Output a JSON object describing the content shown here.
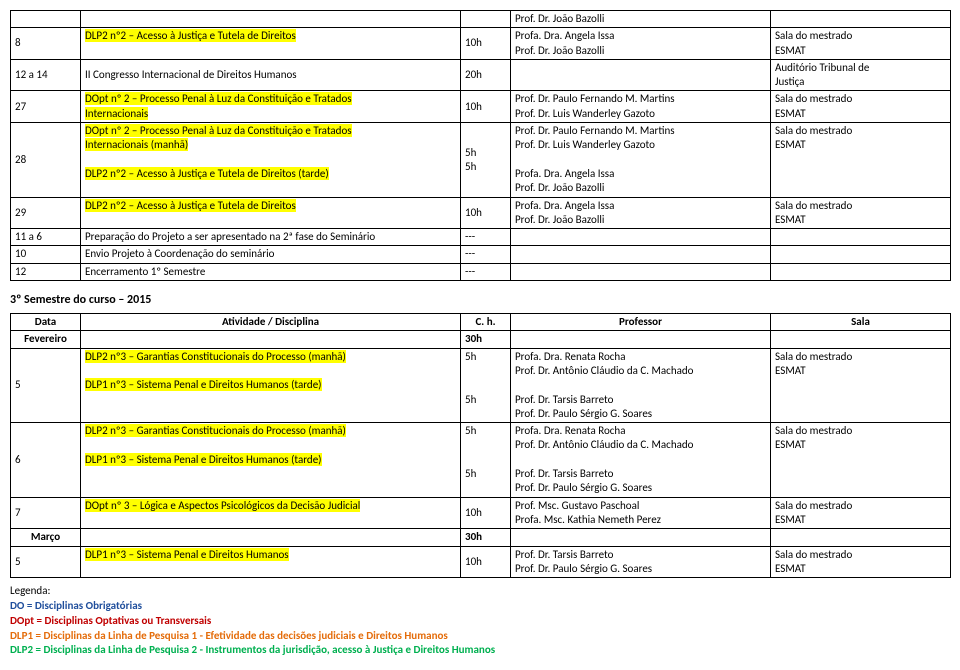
{
  "table1": {
    "rows": [
      {
        "date": "",
        "activity": "",
        "hours": "",
        "prof": "Prof. Dr. João Bazolli",
        "room": ""
      },
      {
        "date": "8",
        "activity": "DLP2 nº2 – Acesso à Justiça e Tutela de Direitos",
        "hours": "10h",
        "prof": "Profa. Dra. Angela Issa\nProf. Dr. João Bazolli",
        "room": "Sala do mestrado\nESMAT",
        "hl": true
      },
      {
        "date": "12 a 14",
        "activity": "II Congresso Internacional de Direitos Humanos",
        "hours": "20h",
        "prof": "",
        "room": "Auditório Tribunal de\nJustiça"
      },
      {
        "date": "27",
        "activity": "DOpt nº 2 – Processo Penal à Luz da Constituição e Tratados\nInternacionais",
        "hours": "10h",
        "prof": "Prof. Dr. Paulo Fernando M. Martins\nProf. Dr. Luis Wanderley Gazoto",
        "room": "Sala do mestrado\nESMAT",
        "hl": true
      },
      {
        "date": "28",
        "activity_a": "DOpt nº 2 – Processo Penal à Luz da Constituição e Tratados\nInternacionais (manhã)",
        "activity_b": "DLP2 nº2 – Acesso à Justiça e Tutela de Direitos (tarde)",
        "hours": "5h\n5h",
        "prof": "Prof. Dr. Paulo Fernando M. Martins\nProf. Dr. Luis Wanderley Gazoto\n\nProfa. Dra. Angela Issa\nProf. Dr. João Bazolli",
        "room": "Sala do mestrado\nESMAT",
        "split": true
      },
      {
        "date": "29",
        "activity": "DLP2 nº2 – Acesso à Justiça e Tutela de Direitos",
        "hours": "10h",
        "prof": "Profa. Dra. Angela Issa\nProf. Dr. João Bazolli",
        "room": "Sala do mestrado\nESMAT",
        "hl": true
      },
      {
        "date": "11 a 6",
        "activity": "Preparação do Projeto a ser apresentado na 2ª fase do Seminário",
        "hours": "---",
        "prof": "",
        "room": ""
      },
      {
        "date": "10",
        "activity": "Envio Projeto à Coordenação do seminário",
        "hours": "---",
        "prof": "",
        "room": ""
      },
      {
        "date": "12",
        "activity": "Encerramento 1º Semestre",
        "hours": "---",
        "prof": "",
        "room": ""
      }
    ]
  },
  "section2_title": "3º Semestre do curso – 2015",
  "table2": {
    "header": {
      "date": "Data",
      "activity": "Atividade / Disciplina",
      "hours": "C. h.",
      "prof": "Professor",
      "room": "Sala"
    },
    "months": {
      "fevereiro": {
        "label": "Fevereiro",
        "hours": "30h"
      },
      "marco": {
        "label": "Março",
        "hours": "30h"
      }
    },
    "rows_fevereiro": [
      {
        "date": "5",
        "activity_a": "DLP2 nº3 – Garantias Constitucionais do Processo (manhã)",
        "activity_b": "DLP1 nº3 – Sistema Penal e Direitos Humanos (tarde)",
        "hours_a": "5h",
        "hours_b": "5h",
        "prof": "Profa. Dra. Renata Rocha\nProf. Dr. Antônio Cláudio da C. Machado\n\nProf. Dr. Tarsis Barreto\nProf. Dr. Paulo Sérgio G. Soares",
        "room": "Sala do mestrado\nESMAT"
      },
      {
        "date": "6",
        "activity_a": "DLP2 nº3 – Garantias Constitucionais do Processo (manhã)",
        "activity_b": "DLP1 nº3 – Sistema Penal e Direitos Humanos (tarde)",
        "hours_a": "5h",
        "hours_b": "5h",
        "prof": "Profa. Dra. Renata Rocha\nProf. Dr. Antônio Cláudio da C. Machado\n\nProf. Dr. Tarsis Barreto\nProf. Dr. Paulo Sérgio G. Soares",
        "room": "Sala do mestrado\nESMAT"
      },
      {
        "date": "7",
        "activity": "DOpt nº 3 – Lógica e Aspectos Psicológicos da Decisão Judicial",
        "hours": "10h",
        "prof": "Prof. Msc. Gustavo Paschoal\nProfa. Msc. Kathia Nemeth Perez",
        "room": "Sala do mestrado\nESMAT",
        "hl": true
      }
    ],
    "rows_marco": [
      {
        "date": "5",
        "activity": "DLP1 nº3 – Sistema Penal e Direitos Humanos",
        "hours": "10h",
        "prof": "Prof. Dr. Tarsis Barreto\nProf. Dr. Paulo Sérgio G. Soares",
        "room": "Sala do mestrado\nESMAT",
        "hl": true
      }
    ]
  },
  "legend": {
    "title": "Legenda:",
    "l1": "DO = Disciplinas Obrigatórias",
    "l2": "DOpt = Disciplinas Optativas ou Transversais",
    "l3": "DLP1 = Disciplinas da Linha de Pesquisa 1 - Efetividade das decisões judiciais e Direitos Humanos",
    "l4": "DLP2 = Disciplinas da Linha de Pesquisa 2 - Instrumentos da jurisdição, acesso à Justiça e Direitos Humanos"
  }
}
